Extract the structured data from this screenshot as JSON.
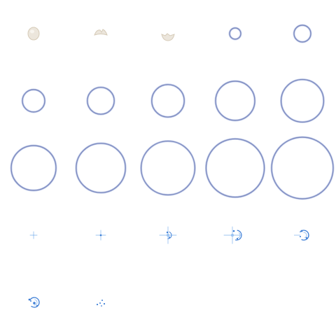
{
  "sprite_sheet": {
    "background": "#ffffff",
    "columns": 5,
    "rows": 5,
    "frame_count": 22,
    "colors": {
      "shell": "#ece6dc",
      "shell_shadow": "#d6cbb8",
      "ring_outer": "#7f8cbf",
      "ring_inner": "#c9d3ee",
      "sparkle": "#3f7fd6",
      "sparkle_light": "#9cc4f2"
    },
    "frames": [
      {
        "kind": "shell-whole"
      },
      {
        "kind": "shell-crack-top"
      },
      {
        "kind": "shell-crack-bottom"
      },
      {
        "kind": "ring",
        "level": 0.1
      },
      {
        "kind": "ring",
        "level": 0.15
      },
      {
        "kind": "ring",
        "level": 0.2
      },
      {
        "kind": "ring",
        "level": 0.24
      },
      {
        "kind": "ring",
        "level": 0.29
      },
      {
        "kind": "ring",
        "level": 0.35
      },
      {
        "kind": "ring",
        "level": 0.38
      },
      {
        "kind": "ring",
        "level": 0.4
      },
      {
        "kind": "ring",
        "level": 0.44
      },
      {
        "kind": "ring",
        "level": 0.48
      },
      {
        "kind": "ring",
        "level": 0.52
      },
      {
        "kind": "ring",
        "level": 0.55
      },
      {
        "kind": "sparkle",
        "stage": 1
      },
      {
        "kind": "sparkle",
        "stage": 2
      },
      {
        "kind": "sparkle",
        "stage": 3
      },
      {
        "kind": "sparkle",
        "stage": 4
      },
      {
        "kind": "sparkle",
        "stage": 5
      },
      {
        "kind": "sparkle",
        "stage": 6
      },
      {
        "kind": "sparkle",
        "stage": 7
      }
    ]
  }
}
